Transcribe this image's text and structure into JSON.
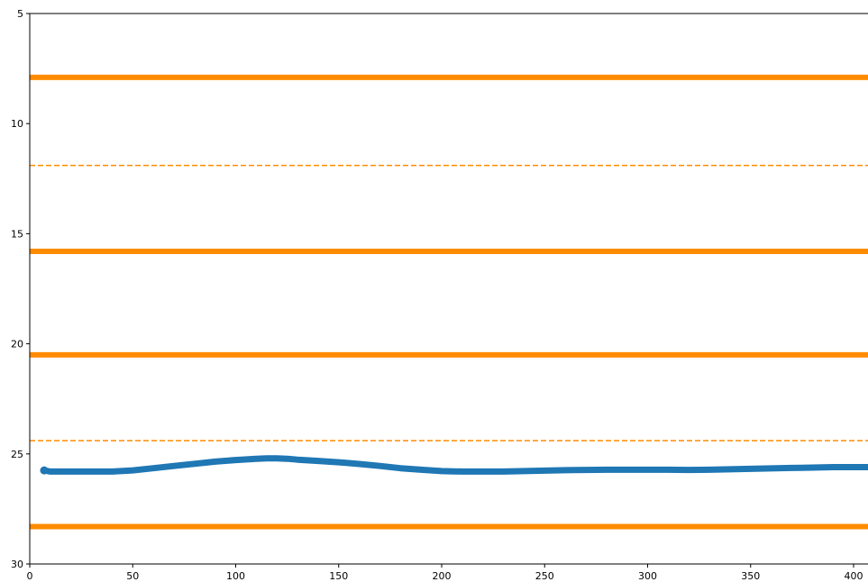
{
  "chart_data": {
    "type": "line",
    "title": "",
    "xlabel": "",
    "ylabel": "",
    "xlim": [
      0,
      407
    ],
    "ylim": [
      30,
      5
    ],
    "y_inverted": true,
    "grid": false,
    "legend": "none",
    "x_ticks": [
      {
        "value": 0,
        "label": "0"
      },
      {
        "value": 50,
        "label": "50"
      },
      {
        "value": 100,
        "label": "100"
      },
      {
        "value": 150,
        "label": "150"
      },
      {
        "value": 200,
        "label": "200"
      },
      {
        "value": 250,
        "label": "250"
      },
      {
        "value": 300,
        "label": "300"
      },
      {
        "value": 350,
        "label": "350"
      },
      {
        "value": 400,
        "label": "400"
      }
    ],
    "y_ticks": [
      {
        "value": 5,
        "label": "5"
      },
      {
        "value": 10,
        "label": "10"
      },
      {
        "value": 15,
        "label": "15"
      },
      {
        "value": 20,
        "label": "20"
      },
      {
        "value": 25,
        "label": "25"
      },
      {
        "value": 30,
        "label": "30"
      }
    ],
    "reference_lines": [
      {
        "y": 7.9,
        "style": "solid",
        "color": "#ff8c00"
      },
      {
        "y": 11.9,
        "style": "dashed",
        "color": "#ff8c00"
      },
      {
        "y": 15.8,
        "style": "solid",
        "color": "#ff8c00"
      },
      {
        "y": 20.5,
        "style": "solid",
        "color": "#ff8c00"
      },
      {
        "y": 24.4,
        "style": "dashed",
        "color": "#ff8c00"
      },
      {
        "y": 28.3,
        "style": "solid",
        "color": "#ff8c00"
      }
    ],
    "series": [
      {
        "color": "#1f77b4",
        "x": [
          7,
          10,
          20,
          30,
          40,
          50,
          60,
          70,
          80,
          90,
          100,
          110,
          115,
          120,
          125,
          130,
          140,
          150,
          160,
          170,
          180,
          190,
          200,
          210,
          220,
          230,
          240,
          250,
          260,
          270,
          280,
          290,
          300,
          310,
          320,
          330,
          340,
          350,
          360,
          370,
          380,
          390,
          400,
          407
        ],
        "y": [
          25.75,
          25.8,
          25.8,
          25.8,
          25.8,
          25.75,
          25.65,
          25.55,
          25.45,
          25.35,
          25.28,
          25.22,
          25.2,
          25.2,
          25.22,
          25.26,
          25.32,
          25.38,
          25.46,
          25.55,
          25.65,
          25.72,
          25.78,
          25.8,
          25.8,
          25.8,
          25.78,
          25.76,
          25.74,
          25.73,
          25.72,
          25.72,
          25.72,
          25.72,
          25.73,
          25.72,
          25.7,
          25.68,
          25.66,
          25.64,
          25.62,
          25.6,
          25.6,
          25.6
        ]
      }
    ]
  }
}
